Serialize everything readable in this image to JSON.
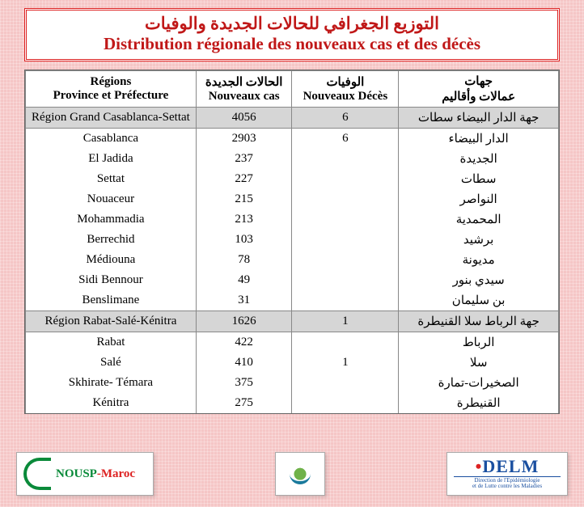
{
  "title": {
    "ar": "التوزيع الجغرافي للحالات الجديدة والوفيات",
    "fr": "Distribution régionale des nouveaux cas et des décès",
    "color": "#c01818"
  },
  "headers": {
    "region_fr": "Régions",
    "region_fr2": "Province et Préfecture",
    "cases_ar": "الحالات الجديدة",
    "cases_fr": "Nouveaux cas",
    "deaths_ar": "الوفيات",
    "deaths_fr": "Nouveaux Décès",
    "region_ar1": "جهات",
    "region_ar2": "عمالات وأقاليم"
  },
  "rows": [
    {
      "type": "region",
      "fr": "Région Grand Casablanca-Settat",
      "cases": "4056",
      "deaths": "6",
      "ar": "جهة الدار البيضاء سطات"
    },
    {
      "type": "data",
      "fr": "Casablanca",
      "cases": "2903",
      "deaths": "6",
      "ar": "الدار البيضاء"
    },
    {
      "type": "data",
      "fr": "El Jadida",
      "cases": "237",
      "deaths": "",
      "ar": "الجديدة"
    },
    {
      "type": "data",
      "fr": "Settat",
      "cases": "227",
      "deaths": "",
      "ar": "سطات"
    },
    {
      "type": "data",
      "fr": "Nouaceur",
      "cases": "215",
      "deaths": "",
      "ar": "النواصر"
    },
    {
      "type": "data",
      "fr": "Mohammadia",
      "cases": "213",
      "deaths": "",
      "ar": "المحمدية"
    },
    {
      "type": "data",
      "fr": "Berrechid",
      "cases": "103",
      "deaths": "",
      "ar": "برشيد"
    },
    {
      "type": "data",
      "fr": "Médiouna",
      "cases": "78",
      "deaths": "",
      "ar": "مديونة"
    },
    {
      "type": "data",
      "fr": "Sidi Bennour",
      "cases": "49",
      "deaths": "",
      "ar": "سيدي بنور"
    },
    {
      "type": "data",
      "fr": "Benslimane",
      "cases": "31",
      "deaths": "",
      "ar": "بن سليمان"
    },
    {
      "type": "region",
      "fr": "Région Rabat-Salé-Kénitra",
      "cases": "1626",
      "deaths": "1",
      "ar": "جهة الرباط سلا القنيطرة"
    },
    {
      "type": "data",
      "fr": "Rabat",
      "cases": "422",
      "deaths": "",
      "ar": "الرباط"
    },
    {
      "type": "data",
      "fr": "Salé",
      "cases": "410",
      "deaths": "1",
      "ar": "سلا"
    },
    {
      "type": "data",
      "fr": "Skhirate- Témara",
      "cases": "375",
      "deaths": "",
      "ar": "الصخيرات-تمارة"
    },
    {
      "type": "data",
      "fr": "Kénitra",
      "cases": "275",
      "deaths": "",
      "ar": "القنيطرة"
    }
  ],
  "logos": {
    "nousp": {
      "text1": "NOUSP",
      "text2": "-Maroc"
    },
    "delm": {
      "big": "DELM",
      "line1": "Direction de l'Epidémiologie",
      "line2": "et de Lutte contre les Maladies"
    }
  },
  "style": {
    "region_row_bg": "#d6d6d6",
    "border_color": "#888888",
    "page_bg": "#f5c6c6"
  }
}
